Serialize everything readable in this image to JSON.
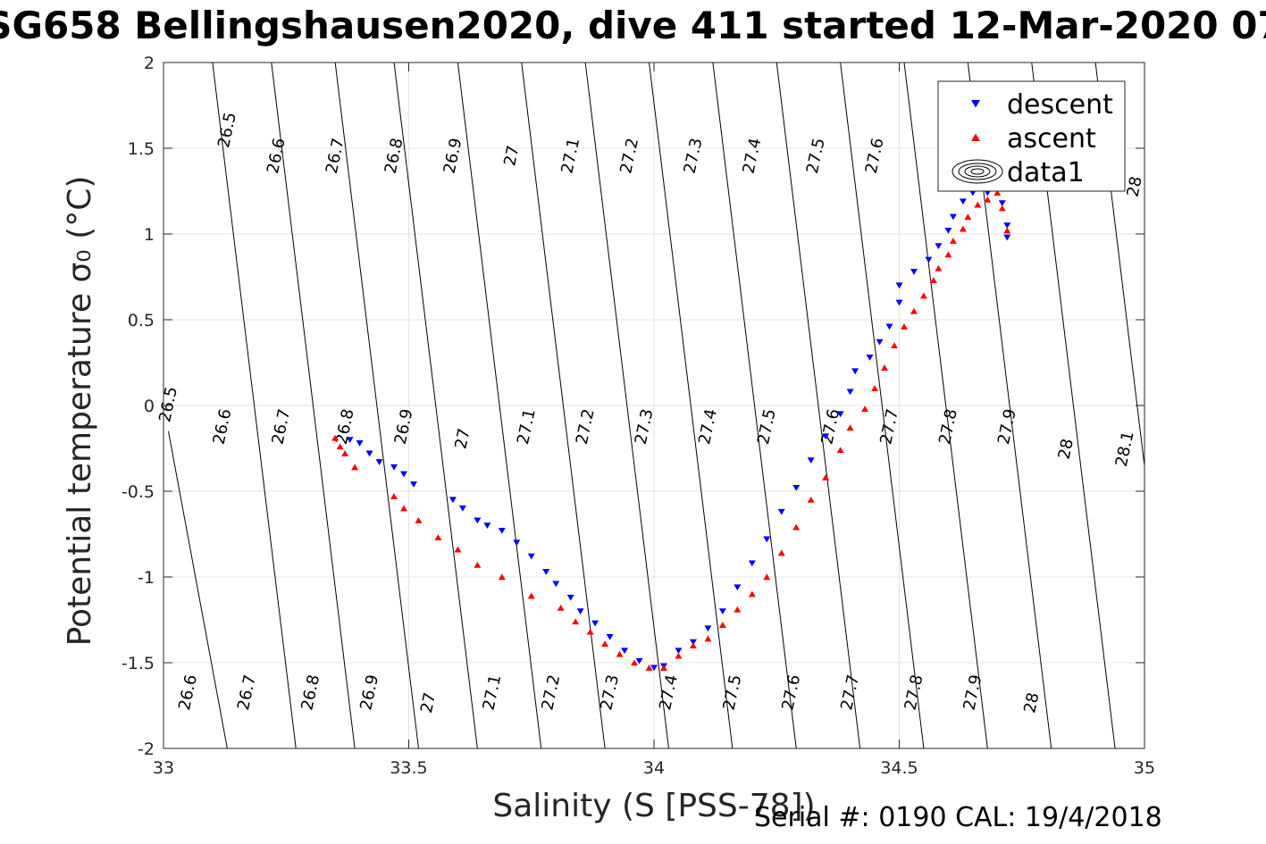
{
  "chart_data": {
    "type": "scatter",
    "title": "SG658 Bellingshausen2020, dive 411 started 12-Mar-2020 07",
    "xlabel": "Salinity (S [PSS-78])",
    "ylabel": "Potential temperature σ₀ (°C)",
    "xlim": [
      33,
      35
    ],
    "ylim": [
      -2,
      2
    ],
    "xticks": [
      "33",
      "33.5",
      "34",
      "34.5",
      "35"
    ],
    "yticks": [
      "-2",
      "-1.5",
      "-1",
      "-0.5",
      "0",
      "0.5",
      "1",
      "1.5",
      "2"
    ],
    "grid": true,
    "legend_position": "top-right",
    "footer": "Serial #: 0190  CAL: 19/4/2018",
    "series": [
      {
        "name": "descent",
        "marker": "triangle-down",
        "color": "#0000ff",
        "points": [
          [
            33.38,
            -0.2
          ],
          [
            33.4,
            -0.22
          ],
          [
            33.42,
            -0.28
          ],
          [
            33.44,
            -0.33
          ],
          [
            33.47,
            -0.36
          ],
          [
            33.49,
            -0.4
          ],
          [
            33.51,
            -0.46
          ],
          [
            33.59,
            -0.55
          ],
          [
            33.61,
            -0.6
          ],
          [
            33.64,
            -0.67
          ],
          [
            33.66,
            -0.7
          ],
          [
            33.69,
            -0.73
          ],
          [
            33.72,
            -0.8
          ],
          [
            33.75,
            -0.88
          ],
          [
            33.78,
            -0.97
          ],
          [
            33.8,
            -1.04
          ],
          [
            33.83,
            -1.12
          ],
          [
            33.85,
            -1.2
          ],
          [
            33.88,
            -1.27
          ],
          [
            33.91,
            -1.35
          ],
          [
            33.94,
            -1.43
          ],
          [
            33.97,
            -1.49
          ],
          [
            34.0,
            -1.53
          ],
          [
            34.02,
            -1.52
          ],
          [
            34.05,
            -1.43
          ],
          [
            34.08,
            -1.38
          ],
          [
            34.11,
            -1.3
          ],
          [
            34.14,
            -1.2
          ],
          [
            34.17,
            -1.06
          ],
          [
            34.2,
            -0.92
          ],
          [
            34.23,
            -0.78
          ],
          [
            34.26,
            -0.62
          ],
          [
            34.29,
            -0.48
          ],
          [
            34.32,
            -0.32
          ],
          [
            34.35,
            -0.18
          ],
          [
            34.38,
            -0.05
          ],
          [
            34.4,
            0.08
          ],
          [
            34.41,
            0.2
          ],
          [
            34.44,
            0.28
          ],
          [
            34.46,
            0.37
          ],
          [
            34.48,
            0.46
          ],
          [
            34.5,
            0.6
          ],
          [
            34.5,
            0.7
          ],
          [
            34.53,
            0.78
          ],
          [
            34.56,
            0.85
          ],
          [
            34.58,
            0.93
          ],
          [
            34.6,
            1.02
          ],
          [
            34.61,
            1.1
          ],
          [
            34.63,
            1.19
          ],
          [
            34.65,
            1.24
          ],
          [
            34.68,
            1.24
          ],
          [
            34.7,
            1.28
          ],
          [
            34.71,
            1.18
          ],
          [
            34.72,
            1.05
          ],
          [
            34.72,
            0.98
          ]
        ]
      },
      {
        "name": "ascent",
        "marker": "triangle-up",
        "color": "#ff0000",
        "points": [
          [
            33.35,
            -0.19
          ],
          [
            33.36,
            -0.24
          ],
          [
            33.37,
            -0.28
          ],
          [
            33.39,
            -0.36
          ],
          [
            33.47,
            -0.53
          ],
          [
            33.49,
            -0.6
          ],
          [
            33.52,
            -0.67
          ],
          [
            33.56,
            -0.77
          ],
          [
            33.6,
            -0.84
          ],
          [
            33.64,
            -0.93
          ],
          [
            33.69,
            -1.0
          ],
          [
            33.75,
            -1.11
          ],
          [
            33.81,
            -1.18
          ],
          [
            33.84,
            -1.26
          ],
          [
            33.87,
            -1.32
          ],
          [
            33.9,
            -1.39
          ],
          [
            33.93,
            -1.45
          ],
          [
            33.96,
            -1.5
          ],
          [
            33.99,
            -1.53
          ],
          [
            34.02,
            -1.53
          ],
          [
            34.05,
            -1.46
          ],
          [
            34.08,
            -1.4
          ],
          [
            34.11,
            -1.36
          ],
          [
            34.14,
            -1.28
          ],
          [
            34.17,
            -1.19
          ],
          [
            34.2,
            -1.1
          ],
          [
            34.23,
            -1.0
          ],
          [
            34.26,
            -0.86
          ],
          [
            34.29,
            -0.71
          ],
          [
            34.32,
            -0.55
          ],
          [
            34.35,
            -0.42
          ],
          [
            34.38,
            -0.26
          ],
          [
            34.4,
            -0.13
          ],
          [
            34.43,
            -0.02
          ],
          [
            34.45,
            0.1
          ],
          [
            34.47,
            0.22
          ],
          [
            34.49,
            0.35
          ],
          [
            34.51,
            0.46
          ],
          [
            34.53,
            0.55
          ],
          [
            34.55,
            0.64
          ],
          [
            34.57,
            0.73
          ],
          [
            34.58,
            0.8
          ],
          [
            34.6,
            0.88
          ],
          [
            34.61,
            0.96
          ],
          [
            34.63,
            1.03
          ],
          [
            34.64,
            1.1
          ],
          [
            34.66,
            1.17
          ],
          [
            34.68,
            1.2
          ],
          [
            34.7,
            1.24
          ],
          [
            34.71,
            1.15
          ],
          [
            34.72,
            1.02
          ],
          [
            34.71,
            1.3
          ]
        ]
      },
      {
        "name": "data1",
        "marker": "contour"
      }
    ],
    "density_contours": [
      {
        "label": "26.5",
        "seg": [
          [
            33.13,
            -2.0
          ],
          [
            33.01,
            -0.15
          ]
        ]
      },
      {
        "label": "26.6",
        "seg": [
          [
            33.27,
            -2.0
          ],
          [
            33.1,
            2.0
          ]
        ]
      },
      {
        "label": "26.7",
        "seg": [
          [
            33.39,
            -2.0
          ],
          [
            33.22,
            2.0
          ]
        ]
      },
      {
        "label": "26.8",
        "seg": [
          [
            33.52,
            -2.0
          ],
          [
            33.35,
            2.0
          ]
        ]
      },
      {
        "label": "26.9",
        "seg": [
          [
            33.64,
            -2.0
          ],
          [
            33.47,
            2.0
          ]
        ]
      },
      {
        "label": "27",
        "seg": [
          [
            33.77,
            -2.0
          ],
          [
            33.6,
            2.0
          ]
        ]
      },
      {
        "label": "27.1",
        "seg": [
          [
            33.9,
            -2.0
          ],
          [
            33.73,
            2.0
          ]
        ]
      },
      {
        "label": "27.2",
        "seg": [
          [
            34.03,
            -2.0
          ],
          [
            33.86,
            2.0
          ]
        ]
      },
      {
        "label": "27.3",
        "seg": [
          [
            34.16,
            -2.0
          ],
          [
            33.99,
            2.0
          ]
        ]
      },
      {
        "label": "27.4",
        "seg": [
          [
            34.29,
            -2.0
          ],
          [
            34.12,
            2.0
          ]
        ]
      },
      {
        "label": "27.5",
        "seg": [
          [
            34.42,
            -2.0
          ],
          [
            34.25,
            2.0
          ]
        ]
      },
      {
        "label": "27.6",
        "seg": [
          [
            34.55,
            -2.0
          ],
          [
            34.38,
            2.0
          ]
        ]
      },
      {
        "label": "27.7",
        "seg": [
          [
            34.68,
            -2.0
          ],
          [
            34.51,
            2.0
          ]
        ]
      },
      {
        "label": "27.8",
        "seg": [
          [
            34.81,
            -2.0
          ],
          [
            34.64,
            2.0
          ]
        ]
      },
      {
        "label": "27.9",
        "seg": [
          [
            34.94,
            -2.0
          ],
          [
            34.77,
            2.0
          ]
        ]
      },
      {
        "label": "28",
        "seg": [
          [
            35.07,
            -2.0
          ],
          [
            34.9,
            2.0
          ]
        ]
      },
      {
        "label": "28.1",
        "seg": [
          [
            35.2,
            -2.0
          ],
          [
            35.03,
            2.0
          ]
        ]
      }
    ],
    "contour_labels": [
      {
        "text": "26.5",
        "at": [
          33.14,
          1.6
        ]
      },
      {
        "text": "26.6",
        "at": [
          33.24,
          1.45
        ]
      },
      {
        "text": "26.7",
        "at": [
          33.36,
          1.45
        ]
      },
      {
        "text": "26.8",
        "at": [
          33.48,
          1.45
        ]
      },
      {
        "text": "26.9",
        "at": [
          33.6,
          1.45
        ]
      },
      {
        "text": "27",
        "at": [
          33.72,
          1.45
        ]
      },
      {
        "text": "27.1",
        "at": [
          33.84,
          1.45
        ]
      },
      {
        "text": "27.2",
        "at": [
          33.96,
          1.45
        ]
      },
      {
        "text": "27.3",
        "at": [
          34.09,
          1.45
        ]
      },
      {
        "text": "27.4",
        "at": [
          34.21,
          1.45
        ]
      },
      {
        "text": "27.5",
        "at": [
          34.34,
          1.45
        ]
      },
      {
        "text": "27.6",
        "at": [
          34.46,
          1.45
        ]
      },
      {
        "text": "26.5",
        "at": [
          33.02,
          0.0
        ]
      },
      {
        "text": "26.6",
        "at": [
          33.13,
          -0.13
        ]
      },
      {
        "text": "26.7",
        "at": [
          33.25,
          -0.13
        ]
      },
      {
        "text": "26.8",
        "at": [
          33.38,
          -0.13
        ]
      },
      {
        "text": "26.9",
        "at": [
          33.5,
          -0.13
        ]
      },
      {
        "text": "27",
        "at": [
          33.62,
          -0.2
        ]
      },
      {
        "text": "27.1",
        "at": [
          33.75,
          -0.13
        ]
      },
      {
        "text": "27.2",
        "at": [
          33.87,
          -0.13
        ]
      },
      {
        "text": "27.3",
        "at": [
          33.99,
          -0.13
        ]
      },
      {
        "text": "27.4",
        "at": [
          34.12,
          -0.13
        ]
      },
      {
        "text": "27.5",
        "at": [
          34.24,
          -0.13
        ]
      },
      {
        "text": "27.6",
        "at": [
          34.37,
          -0.13
        ]
      },
      {
        "text": "27.7",
        "at": [
          34.49,
          -0.13
        ]
      },
      {
        "text": "27.8",
        "at": [
          34.61,
          -0.13
        ]
      },
      {
        "text": "27.9",
        "at": [
          34.73,
          -0.13
        ]
      },
      {
        "text": "28",
        "at": [
          34.85,
          -0.26
        ]
      },
      {
        "text": "28.1",
        "at": [
          34.97,
          -0.26
        ]
      },
      {
        "text": "28",
        "at": [
          34.99,
          1.27
        ]
      },
      {
        "text": "26.6",
        "at": [
          33.06,
          -1.68
        ]
      },
      {
        "text": "26.7",
        "at": [
          33.18,
          -1.68
        ]
      },
      {
        "text": "26.8",
        "at": [
          33.31,
          -1.68
        ]
      },
      {
        "text": "26.9",
        "at": [
          33.43,
          -1.68
        ]
      },
      {
        "text": "27",
        "at": [
          33.55,
          -1.74
        ]
      },
      {
        "text": "27.1",
        "at": [
          33.68,
          -1.68
        ]
      },
      {
        "text": "27.2",
        "at": [
          33.8,
          -1.68
        ]
      },
      {
        "text": "27.3",
        "at": [
          33.92,
          -1.68
        ]
      },
      {
        "text": "27.4",
        "at": [
          34.04,
          -1.68
        ]
      },
      {
        "text": "27.5",
        "at": [
          34.17,
          -1.68
        ]
      },
      {
        "text": "27.6",
        "at": [
          34.29,
          -1.68
        ]
      },
      {
        "text": "27.7",
        "at": [
          34.41,
          -1.68
        ]
      },
      {
        "text": "27.8",
        "at": [
          34.54,
          -1.68
        ]
      },
      {
        "text": "27.9",
        "at": [
          34.66,
          -1.68
        ]
      },
      {
        "text": "28",
        "at": [
          34.78,
          -1.74
        ]
      }
    ]
  }
}
